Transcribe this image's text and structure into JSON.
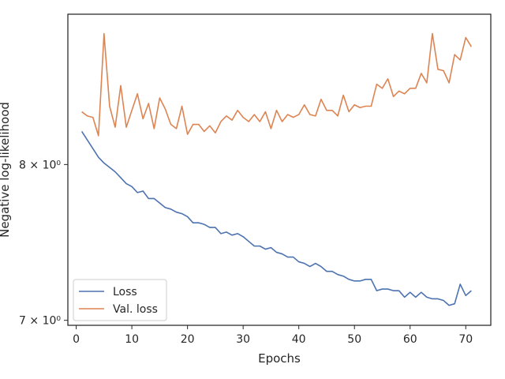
{
  "chart_data": {
    "type": "line",
    "title": "",
    "xlabel": "Epochs",
    "ylabel": "Negative log-likelihood",
    "yscale": "log",
    "xlim": [
      -1.5,
      74.5
    ],
    "ylim": [
      6.97,
      9.1
    ],
    "x_ticks": [
      0,
      10,
      20,
      30,
      40,
      50,
      60,
      70
    ],
    "x_tick_labels": [
      "0",
      "10",
      "20",
      "30",
      "40",
      "50",
      "60",
      "70"
    ],
    "y_ticks": [
      7,
      8
    ],
    "y_tick_labels": [
      "7 × 10⁰",
      "8 × 10⁰"
    ],
    "grid": false,
    "legend_position": "lower-left",
    "x": [
      1,
      2,
      3,
      4,
      5,
      6,
      7,
      8,
      9,
      10,
      11,
      12,
      13,
      14,
      15,
      16,
      17,
      18,
      19,
      20,
      21,
      22,
      23,
      24,
      25,
      26,
      27,
      28,
      29,
      30,
      31,
      32,
      33,
      34,
      35,
      36,
      37,
      38,
      39,
      40,
      41,
      42,
      43,
      44,
      45,
      46,
      47,
      48,
      49,
      50,
      51,
      52,
      53,
      54,
      55,
      56,
      57,
      58,
      59,
      60,
      61,
      62,
      63,
      64,
      65,
      66,
      67,
      68,
      69,
      70,
      71
    ],
    "series": [
      {
        "name": "Loss",
        "color": "#4c72b0",
        "values": [
          8.23,
          8.17,
          8.11,
          8.05,
          8.01,
          7.98,
          7.95,
          7.91,
          7.87,
          7.85,
          7.81,
          7.82,
          7.77,
          7.77,
          7.74,
          7.71,
          7.7,
          7.68,
          7.67,
          7.65,
          7.61,
          7.61,
          7.6,
          7.58,
          7.58,
          7.54,
          7.55,
          7.53,
          7.54,
          7.52,
          7.49,
          7.46,
          7.46,
          7.44,
          7.45,
          7.42,
          7.41,
          7.39,
          7.39,
          7.36,
          7.35,
          7.33,
          7.35,
          7.33,
          7.3,
          7.3,
          7.28,
          7.27,
          7.25,
          7.24,
          7.24,
          7.25,
          7.25,
          7.18,
          7.19,
          7.19,
          7.18,
          7.18,
          7.14,
          7.17,
          7.14,
          7.17,
          7.14,
          7.13,
          7.13,
          7.12,
          7.09,
          7.1,
          7.22,
          7.15,
          7.18
        ]
      },
      {
        "name": "Val. loss",
        "color": "#dd8452",
        "values": [
          8.37,
          8.34,
          8.33,
          8.2,
          8.95,
          8.41,
          8.26,
          8.56,
          8.26,
          8.38,
          8.5,
          8.32,
          8.43,
          8.25,
          8.47,
          8.39,
          8.28,
          8.25,
          8.41,
          8.21,
          8.28,
          8.28,
          8.23,
          8.27,
          8.22,
          8.3,
          8.34,
          8.31,
          8.38,
          8.33,
          8.3,
          8.35,
          8.3,
          8.37,
          8.25,
          8.38,
          8.3,
          8.35,
          8.33,
          8.35,
          8.42,
          8.35,
          8.34,
          8.46,
          8.38,
          8.38,
          8.34,
          8.49,
          8.37,
          8.42,
          8.4,
          8.41,
          8.41,
          8.57,
          8.54,
          8.61,
          8.48,
          8.52,
          8.5,
          8.54,
          8.54,
          8.65,
          8.58,
          8.95,
          8.68,
          8.67,
          8.58,
          8.79,
          8.75,
          8.92,
          8.85
        ]
      }
    ]
  }
}
